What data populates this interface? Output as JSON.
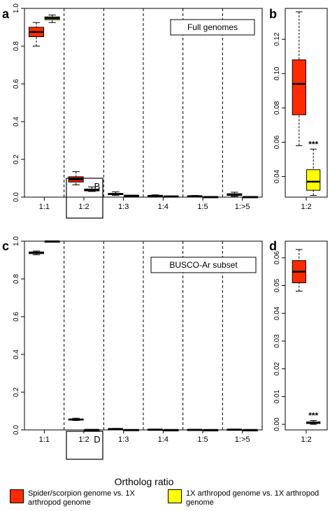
{
  "colors": {
    "spider": "#ff2a00",
    "arthropod": "#ffff00"
  },
  "xlabel": "Ortholog ratio",
  "legend": {
    "spider_label": "Spider/scorpion genome vs. 1X arthropod genome",
    "arthropod_label": "1X arthropod genome vs. 1X arthropod genome"
  },
  "chart_data": [
    {
      "panel": "a",
      "type": "box",
      "annotation": "Full genomes",
      "inset_label": "B",
      "categories": [
        "1:1",
        "1:2",
        "1:3",
        "1:4",
        "1:5",
        "1:>5"
      ],
      "ylim": [
        0,
        1.0
      ],
      "yticks": [
        "0.0",
        "0.2",
        "0.4",
        "0.6",
        "0.8",
        "1.0"
      ],
      "series": [
        {
          "group": "spider",
          "boxes": [
            {
              "min": 0.8,
              "q1": 0.85,
              "median": 0.875,
              "q3": 0.9,
              "max": 0.925
            },
            {
              "min": 0.065,
              "q1": 0.08,
              "median": 0.094,
              "q3": 0.108,
              "max": 0.135
            },
            {
              "min": 0.009,
              "q1": 0.013,
              "median": 0.017,
              "q3": 0.02,
              "max": 0.028
            },
            {
              "min": 0.004,
              "q1": 0.006,
              "median": 0.007,
              "q3": 0.009,
              "max": 0.012
            },
            {
              "min": 0.002,
              "q1": 0.004,
              "median": 0.005,
              "q3": 0.007,
              "max": 0.009
            },
            {
              "min": 0.004,
              "q1": 0.009,
              "median": 0.013,
              "q3": 0.018,
              "max": 0.026
            }
          ]
        },
        {
          "group": "arthropod",
          "boxes": [
            {
              "min": 0.925,
              "q1": 0.94,
              "median": 0.948,
              "q3": 0.955,
              "max": 0.965
            },
            {
              "min": 0.03,
              "q1": 0.033,
              "median": 0.037,
              "q3": 0.043,
              "max": 0.054
            },
            {
              "min": 0.006,
              "q1": 0.007,
              "median": 0.008,
              "q3": 0.009,
              "max": 0.01
            },
            {
              "min": 0.002,
              "q1": 0.003,
              "median": 0.004,
              "q3": 0.005,
              "max": 0.006
            },
            {
              "min": 0.0,
              "q1": 0.001,
              "median": 0.001,
              "q3": 0.002,
              "max": 0.003
            },
            {
              "min": 0.0,
              "q1": 0.001,
              "median": 0.001,
              "q3": 0.002,
              "max": 0.003
            }
          ]
        }
      ]
    },
    {
      "panel": "b",
      "type": "box",
      "categories": [
        "1:2"
      ],
      "ylim": [
        0.028,
        0.138
      ],
      "yticks": [
        "0.04",
        "0.06",
        "0.08",
        "0.10",
        "0.12"
      ],
      "significance": "***",
      "series": [
        {
          "group": "spider",
          "boxes": [
            {
              "min": 0.058,
              "q1": 0.076,
              "median": 0.094,
              "q3": 0.108,
              "max": 0.136
            }
          ]
        },
        {
          "group": "arthropod",
          "boxes": [
            {
              "min": 0.029,
              "q1": 0.032,
              "median": 0.037,
              "q3": 0.044,
              "max": 0.056
            }
          ]
        }
      ]
    },
    {
      "panel": "c",
      "type": "box",
      "annotation": "BUSCO-Ar subset",
      "inset_label": "D",
      "categories": [
        "1:1",
        "1:2",
        "1:3",
        "1:4",
        "1:5",
        "1:>5"
      ],
      "ylim": [
        0,
        1.0
      ],
      "yticks": [
        "0.0",
        "0.2",
        "0.4",
        "0.6",
        "0.8",
        "1.0"
      ],
      "series": [
        {
          "group": "spider",
          "boxes": [
            {
              "min": 0.928,
              "q1": 0.934,
              "median": 0.938,
              "q3": 0.943,
              "max": 0.948
            },
            {
              "min": 0.05,
              "q1": 0.052,
              "median": 0.055,
              "q3": 0.058,
              "max": 0.062
            },
            {
              "min": 0.003,
              "q1": 0.004,
              "median": 0.005,
              "q3": 0.006,
              "max": 0.008
            },
            {
              "min": 0.001,
              "q1": 0.002,
              "median": 0.002,
              "q3": 0.003,
              "max": 0.004
            },
            {
              "min": 0.0,
              "q1": 0.001,
              "median": 0.001,
              "q3": 0.002,
              "max": 0.003
            },
            {
              "min": 0.001,
              "q1": 0.002,
              "median": 0.002,
              "q3": 0.003,
              "max": 0.004
            }
          ]
        },
        {
          "group": "arthropod",
          "boxes": [
            {
              "min": 0.997,
              "q1": 0.998,
              "median": 0.999,
              "q3": 1.0,
              "max": 1.0
            },
            {
              "min": 0.0,
              "q1": 0.0,
              "median": 0.0005,
              "q3": 0.001,
              "max": 0.001
            },
            {
              "min": 0.0,
              "q1": 0.0,
              "median": 0.0,
              "q3": 0.001,
              "max": 0.001
            },
            {
              "min": 0.0,
              "q1": 0.0,
              "median": 0.0,
              "q3": 0.0,
              "max": 0.001
            },
            {
              "min": 0.0,
              "q1": 0.0,
              "median": 0.0,
              "q3": 0.0,
              "max": 0.001
            },
            {
              "min": 0.0,
              "q1": 0.0,
              "median": 0.0,
              "q3": 0.0,
              "max": 0.001
            }
          ]
        }
      ]
    },
    {
      "panel": "d",
      "type": "box",
      "categories": [
        "1:2"
      ],
      "ylim": [
        -0.002,
        0.066
      ],
      "yticks": [
        "0.00",
        "0.01",
        "0.02",
        "0.03",
        "0.04",
        "0.05",
        "0.06"
      ],
      "significance": "***",
      "series": [
        {
          "group": "spider",
          "boxes": [
            {
              "min": 0.048,
              "q1": 0.051,
              "median": 0.055,
              "q3": 0.059,
              "max": 0.063
            }
          ]
        },
        {
          "group": "arthropod",
          "boxes": [
            {
              "min": 0.0,
              "q1": 0.0003,
              "median": 0.0006,
              "q3": 0.0009,
              "max": 0.0014
            }
          ]
        }
      ]
    }
  ]
}
